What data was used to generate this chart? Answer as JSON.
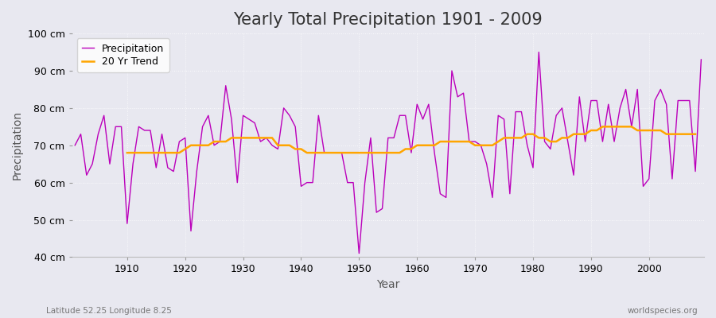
{
  "title": "Yearly Total Precipitation 1901 - 2009",
  "xlabel": "Year",
  "ylabel": "Precipitation",
  "lat_lon_label": "Latitude 52.25 Longitude 8.25",
  "watermark": "worldspecies.org",
  "ylim": [
    40,
    100
  ],
  "ytick_labels": [
    "40 cm",
    "50 cm",
    "60 cm",
    "70 cm",
    "80 cm",
    "90 cm",
    "100 cm"
  ],
  "ytick_values": [
    40,
    50,
    60,
    70,
    80,
    90,
    100
  ],
  "years": [
    1901,
    1902,
    1903,
    1904,
    1905,
    1906,
    1907,
    1908,
    1909,
    1910,
    1911,
    1912,
    1913,
    1914,
    1915,
    1916,
    1917,
    1918,
    1919,
    1920,
    1921,
    1922,
    1923,
    1924,
    1925,
    1926,
    1927,
    1928,
    1929,
    1930,
    1931,
    1932,
    1933,
    1934,
    1935,
    1936,
    1937,
    1938,
    1939,
    1940,
    1941,
    1942,
    1943,
    1944,
    1945,
    1946,
    1947,
    1948,
    1949,
    1950,
    1951,
    1952,
    1953,
    1954,
    1955,
    1956,
    1957,
    1958,
    1959,
    1960,
    1961,
    1962,
    1963,
    1964,
    1965,
    1966,
    1967,
    1968,
    1969,
    1970,
    1971,
    1972,
    1973,
    1974,
    1975,
    1976,
    1977,
    1978,
    1979,
    1980,
    1981,
    1982,
    1983,
    1984,
    1985,
    1986,
    1987,
    1988,
    1989,
    1990,
    1991,
    1992,
    1993,
    1994,
    1995,
    1996,
    1997,
    1998,
    1999,
    2000,
    2001,
    2002,
    2003,
    2004,
    2005,
    2006,
    2007,
    2008,
    2009
  ],
  "precip": [
    70,
    73,
    62,
    65,
    73,
    78,
    65,
    75,
    75,
    49,
    65,
    75,
    74,
    74,
    64,
    73,
    64,
    63,
    71,
    72,
    47,
    63,
    75,
    78,
    70,
    71,
    86,
    77,
    60,
    78,
    77,
    76,
    71,
    72,
    70,
    69,
    80,
    78,
    75,
    59,
    60,
    60,
    78,
    68,
    68,
    68,
    68,
    60,
    60,
    41,
    60,
    72,
    52,
    53,
    72,
    72,
    78,
    78,
    68,
    81,
    77,
    81,
    68,
    57,
    56,
    90,
    83,
    84,
    71,
    71,
    70,
    65,
    56,
    78,
    77,
    57,
    79,
    79,
    70,
    64,
    95,
    71,
    69,
    78,
    80,
    71,
    62,
    83,
    71,
    82,
    82,
    71,
    81,
    71,
    80,
    85,
    75,
    85,
    59,
    61,
    82,
    85,
    81,
    61,
    82,
    82,
    82,
    63,
    93
  ],
  "trend": [
    null,
    null,
    null,
    null,
    null,
    null,
    null,
    null,
    null,
    68,
    68,
    68,
    68,
    68,
    68,
    68,
    68,
    68,
    68,
    69,
    70,
    70,
    70,
    70,
    71,
    71,
    71,
    72,
    72,
    72,
    72,
    72,
    72,
    72,
    72,
    70,
    70,
    70,
    69,
    69,
    68,
    68,
    68,
    68,
    68,
    68,
    68,
    68,
    68,
    68,
    68,
    68,
    68,
    68,
    68,
    68,
    68,
    69,
    69,
    70,
    70,
    70,
    70,
    71,
    71,
    71,
    71,
    71,
    71,
    70,
    70,
    70,
    70,
    71,
    72,
    72,
    72,
    72,
    73,
    73,
    72,
    72,
    71,
    71,
    72,
    72,
    73,
    73,
    73,
    74,
    74,
    75,
    75,
    75,
    75,
    75,
    75,
    74,
    74,
    74,
    74,
    74,
    73,
    73,
    73,
    73,
    73,
    73,
    null
  ],
  "precip_color": "#bb00bb",
  "trend_color": "#ffa500",
  "fig_bg_color": "#e8e8f0",
  "plot_bg_color": "#e8e8f0",
  "grid_color": "#ffffff",
  "title_fontsize": 15,
  "axis_label_fontsize": 10,
  "tick_fontsize": 9,
  "legend_fontsize": 9,
  "xticks": [
    1910,
    1920,
    1930,
    1940,
    1950,
    1960,
    1970,
    1980,
    1990,
    2000
  ]
}
